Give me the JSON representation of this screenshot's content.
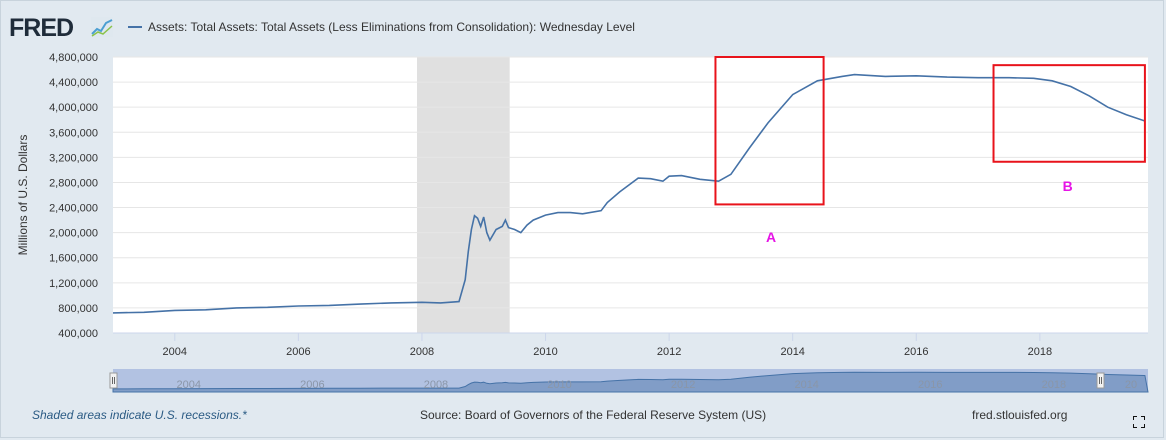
{
  "header": {
    "logo_text": "FRED",
    "logo_icon": "line-graph-icon",
    "legend_label": "Assets: Total Assets: Total Assets (Less Eliminations from Consolidation): Wednesday Level"
  },
  "footer": {
    "note": "Shaded areas indicate U.S. recessions.*",
    "source": "Source: Board of Governors of the Federal Reserve System (US)",
    "site": "fred.stlouisfed.org",
    "expand_icon": "fullscreen-icon"
  },
  "annotations": {
    "a_label": "A",
    "b_label": "B",
    "box_color": "#e8131b",
    "label_color": "#e614e6"
  },
  "colors": {
    "line": "#4572a7",
    "recession": "#e0e0e0",
    "plot_bg": "#ffffff",
    "grid": "#e6e6e6"
  },
  "chart_data": {
    "type": "line",
    "title": "",
    "xlabel": "",
    "ylabel": "Millions of U.S. Dollars",
    "xlim": [
      2003.0,
      2019.75
    ],
    "ylim": [
      400000,
      4800000
    ],
    "y_ticks": [
      400000,
      800000,
      1200000,
      1600000,
      2000000,
      2400000,
      2800000,
      3200000,
      3600000,
      4000000,
      4400000,
      4800000
    ],
    "y_tick_labels": [
      "400,000",
      "800,000",
      "1,200,000",
      "1,600,000",
      "2,000,000",
      "2,400,000",
      "2,800,000",
      "3,200,000",
      "3,600,000",
      "4,000,000",
      "4,400,000",
      "4,800,000"
    ],
    "x_ticks": [
      2004,
      2006,
      2008,
      2010,
      2012,
      2014,
      2016,
      2018
    ],
    "x_tick_labels": [
      "2004",
      "2006",
      "2008",
      "2010",
      "2012",
      "2014",
      "2016",
      "2018"
    ],
    "recessions": [
      [
        2007.92,
        2009.42
      ]
    ],
    "highlight_boxes": [
      {
        "label": "A",
        "x_range": [
          2012.75,
          2014.5
        ],
        "y_range": [
          2450000,
          4800000
        ]
      },
      {
        "label": "B",
        "x_range": [
          2017.25,
          2019.7
        ],
        "y_range": [
          3130000,
          4670000
        ]
      }
    ],
    "series": [
      {
        "name": "Assets: Total Assets: Total Assets (Less Eliminations from Consolidation): Wednesday Level",
        "x": [
          2003.0,
          2003.5,
          2004.0,
          2004.5,
          2005.0,
          2005.5,
          2006.0,
          2006.5,
          2007.0,
          2007.5,
          2008.0,
          2008.3,
          2008.6,
          2008.7,
          2008.75,
          2008.8,
          2008.85,
          2008.9,
          2008.95,
          2009.0,
          2009.05,
          2009.1,
          2009.2,
          2009.3,
          2009.35,
          2009.4,
          2009.5,
          2009.6,
          2009.7,
          2009.8,
          2010.0,
          2010.2,
          2010.4,
          2010.6,
          2010.9,
          2011.0,
          2011.2,
          2011.5,
          2011.7,
          2011.9,
          2012.0,
          2012.2,
          2012.5,
          2012.8,
          2013.0,
          2013.3,
          2013.6,
          2014.0,
          2014.4,
          2014.8,
          2015.0,
          2015.5,
          2016.0,
          2016.5,
          2017.0,
          2017.5,
          2017.9,
          2018.2,
          2018.5,
          2018.8,
          2019.1,
          2019.4,
          2019.7
        ],
        "values": [
          720000,
          730000,
          760000,
          770000,
          800000,
          810000,
          830000,
          840000,
          860000,
          880000,
          890000,
          880000,
          900000,
          1250000,
          1700000,
          2050000,
          2270000,
          2230000,
          2100000,
          2250000,
          2000000,
          1880000,
          2050000,
          2100000,
          2200000,
          2080000,
          2050000,
          2000000,
          2120000,
          2200000,
          2280000,
          2320000,
          2320000,
          2300000,
          2350000,
          2480000,
          2650000,
          2870000,
          2860000,
          2820000,
          2900000,
          2910000,
          2850000,
          2820000,
          2930000,
          3350000,
          3750000,
          4200000,
          4420000,
          4490000,
          4520000,
          4490000,
          4500000,
          4480000,
          4470000,
          4470000,
          4460000,
          4420000,
          4330000,
          4180000,
          4000000,
          3880000,
          3780000
        ]
      }
    ],
    "navigator": {
      "x_tick_labels": [
        "2004",
        "2006",
        "2008",
        "2010",
        "2012",
        "2014",
        "2016",
        "2018",
        "20"
      ]
    }
  }
}
